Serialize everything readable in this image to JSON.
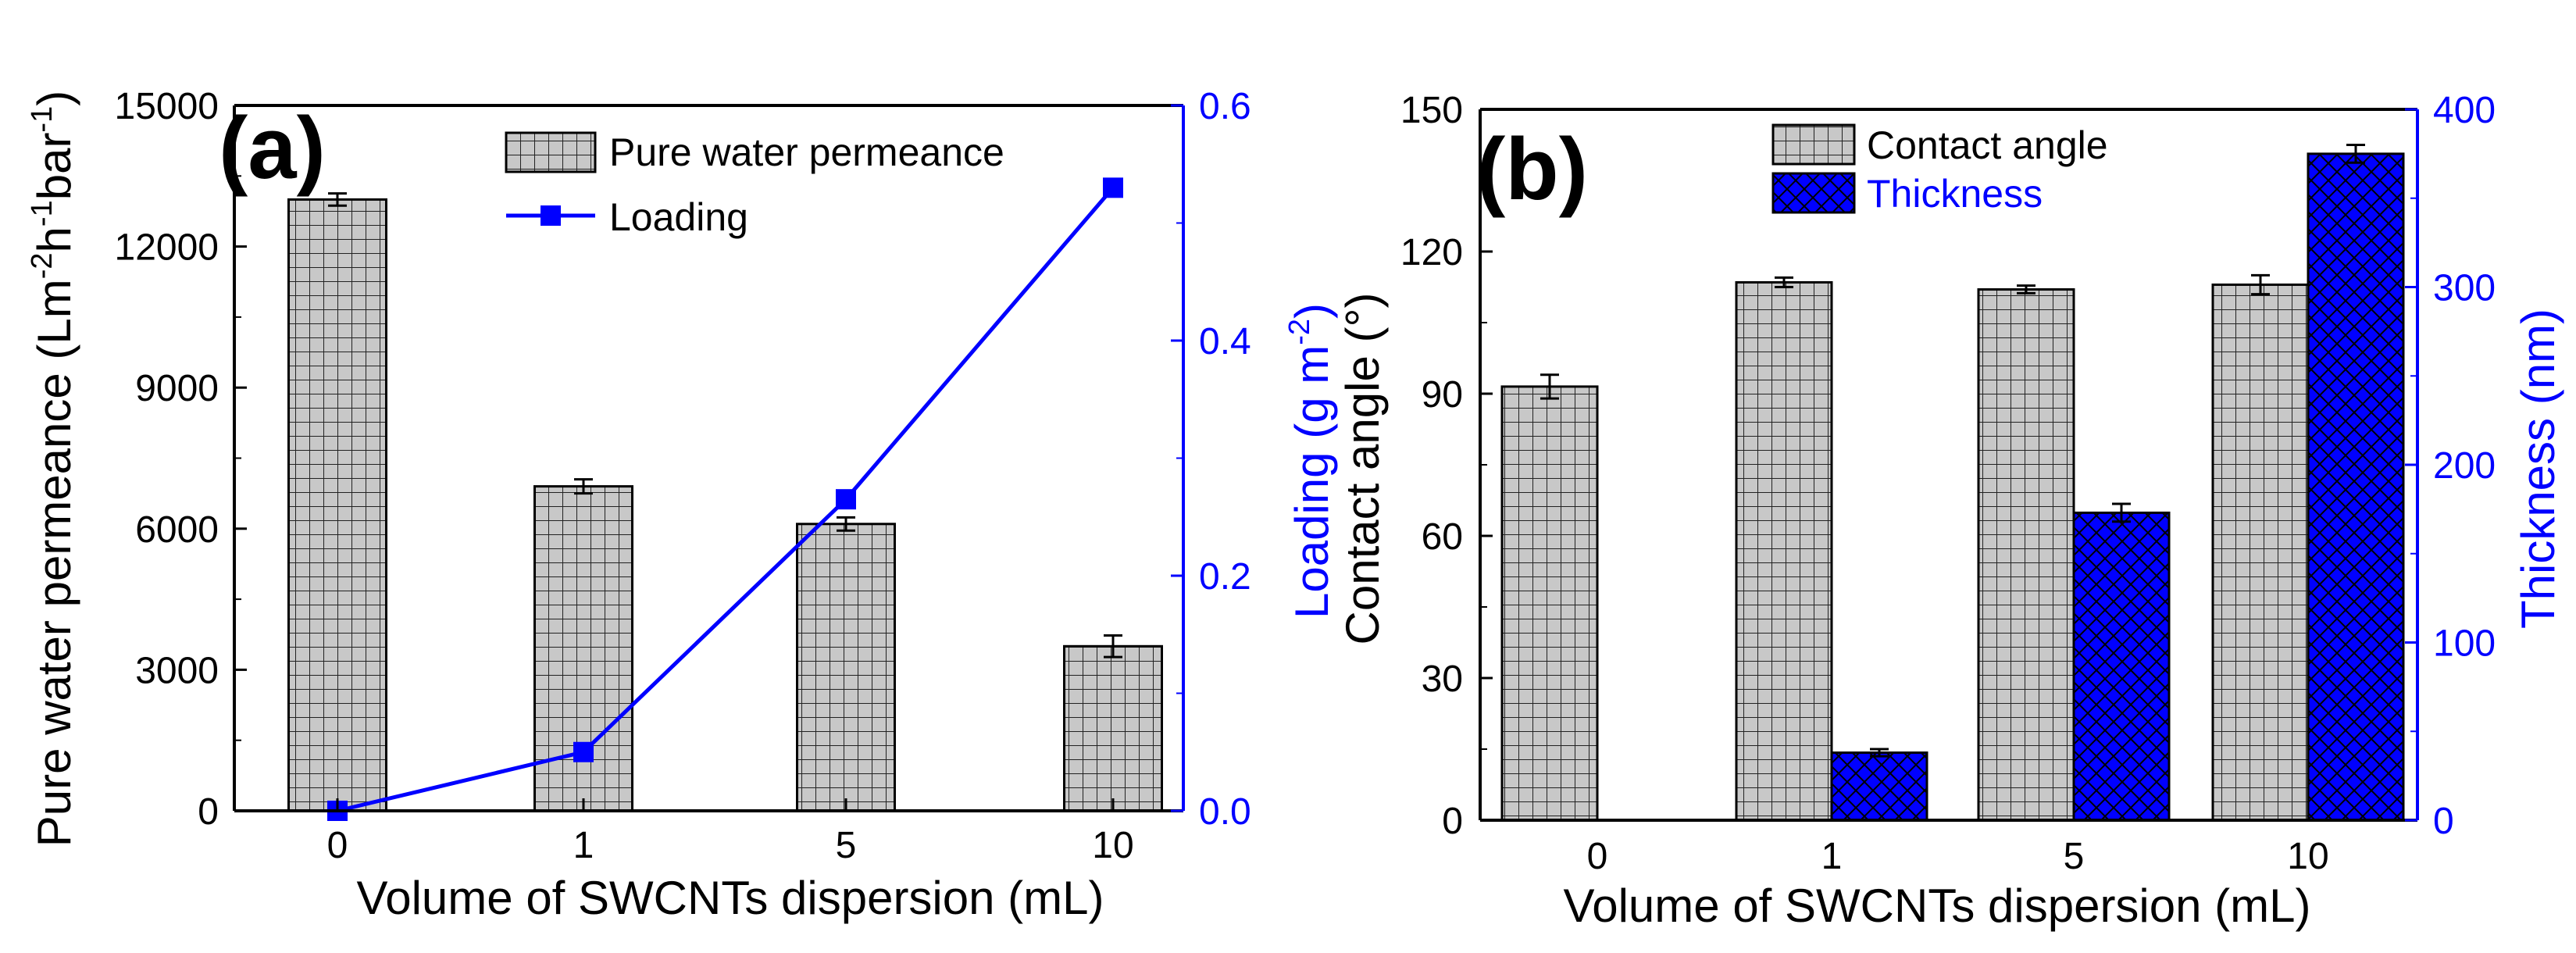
{
  "chart_data": [
    {
      "panel_label": "(a)",
      "type": "bar+line",
      "categories": [
        "0",
        "1",
        "5",
        "10"
      ],
      "xlabel": "Volume of  SWCNTs dispersion (mL)",
      "ylabel_left": "Pure water permeance (Lm-2h-1bar-1)",
      "ylabel_left_parts": [
        "Pure water permeance (Lm",
        "-2",
        "h",
        "-1",
        "bar",
        "-1",
        ")"
      ],
      "ylim_left": [
        0,
        15000
      ],
      "yticks_left": [
        "0",
        "3000",
        "6000",
        "9000",
        "12000",
        "15000"
      ],
      "ylabel_right": "Loading (g m-2)",
      "ylabel_right_parts": [
        "Loading (g m",
        "-2",
        ")"
      ],
      "ylim_right": [
        0,
        0.6
      ],
      "yticks_right": [
        "0.0",
        "0.2",
        "0.4",
        "0.6"
      ],
      "series": [
        {
          "name": "Pure water permeance",
          "kind": "bar",
          "axis": "left",
          "values": [
            13000,
            6900,
            6100,
            3500
          ],
          "errors": [
            130,
            150,
            140,
            230
          ],
          "fill": "#c8c8c8"
        },
        {
          "name": "Loading",
          "kind": "line",
          "axis": "right",
          "values": [
            0.0,
            0.05,
            0.265,
            0.53
          ],
          "color": "#0000ff"
        }
      ],
      "legend": "top-right"
    },
    {
      "panel_label": "(b)",
      "type": "grouped-bar",
      "categories": [
        "0",
        "1",
        "5",
        "10"
      ],
      "xlabel": "Volume of SWCNTs dispersion (mL)",
      "ylabel_left": "Contact angle (°)",
      "ylim_left": [
        0,
        150
      ],
      "yticks_left": [
        "0",
        "30",
        "60",
        "90",
        "120",
        "150"
      ],
      "ylabel_right": "Thickness (nm)",
      "ylim_right": [
        0,
        400
      ],
      "yticks_right": [
        "0",
        "100",
        "200",
        "300",
        "400"
      ],
      "series": [
        {
          "name": "Contact angle",
          "kind": "bar",
          "axis": "left",
          "values": [
            91.5,
            113.5,
            112.0,
            113.0
          ],
          "errors": [
            2.5,
            1.0,
            0.8,
            2.0
          ],
          "fill": "#c8c8c8"
        },
        {
          "name": "Thickness",
          "kind": "bar",
          "axis": "right",
          "values": [
            0,
            38,
            173,
            375
          ],
          "errors": [
            0,
            2,
            5,
            5
          ],
          "fill": "#0000ff"
        }
      ],
      "legend": "top-center"
    }
  ],
  "colors": {
    "axis_right": "#0000ff",
    "bar_grey": "#c8c8c8",
    "bar_blue": "#0000ff",
    "line": "#0000ff"
  }
}
